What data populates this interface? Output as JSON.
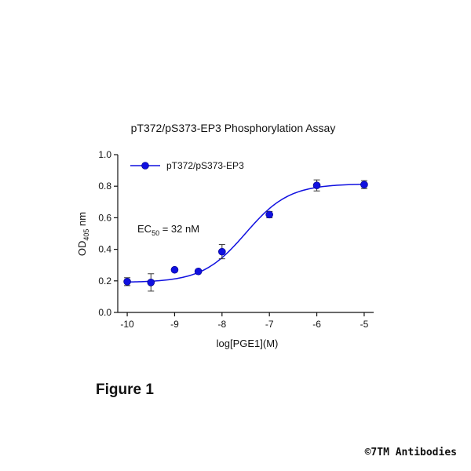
{
  "chart_data": {
    "type": "scatter",
    "title": "pT372/pS373-EP3 Phosphorylation Assay",
    "xlabel": "log[PGE1](M)",
    "ylabel": "OD",
    "ylabel_sub": "405",
    "ylabel_unit": " nm",
    "xlim": [
      -10.2,
      -4.8
    ],
    "ylim": [
      0,
      1.0
    ],
    "xticks": [
      -10,
      -9,
      -8,
      -7,
      -6,
      -5
    ],
    "yticks": [
      0.0,
      0.2,
      0.4,
      0.6,
      0.8,
      1.0
    ],
    "ytick_labels": [
      "0.0",
      "0.2",
      "0.4",
      "0.6",
      "0.8",
      "1.0"
    ],
    "grid": false,
    "legend_position": "top-left",
    "series": [
      {
        "name": "pT372/pS373-EP3",
        "color": "#1010e0",
        "marker": "circle",
        "x": [
          -10,
          -9.5,
          -9,
          -8.5,
          -8,
          -7,
          -6,
          -5
        ],
        "y": [
          0.195,
          0.19,
          0.27,
          0.26,
          0.385,
          0.62,
          0.805,
          0.81
        ],
        "yerr": [
          0.025,
          0.055,
          0.0,
          0.0,
          0.045,
          0.02,
          0.035,
          0.025
        ]
      }
    ],
    "fit": {
      "model": "4PL",
      "bottom": 0.19,
      "top": 0.815,
      "logEC50": -7.5,
      "hill": 0.95
    },
    "annotation": {
      "prefix": "EC",
      "sub": "50",
      "suffix": " = 32 nM"
    }
  },
  "figure_label": "Figure 1",
  "copyright": "©7TM Antibodies"
}
